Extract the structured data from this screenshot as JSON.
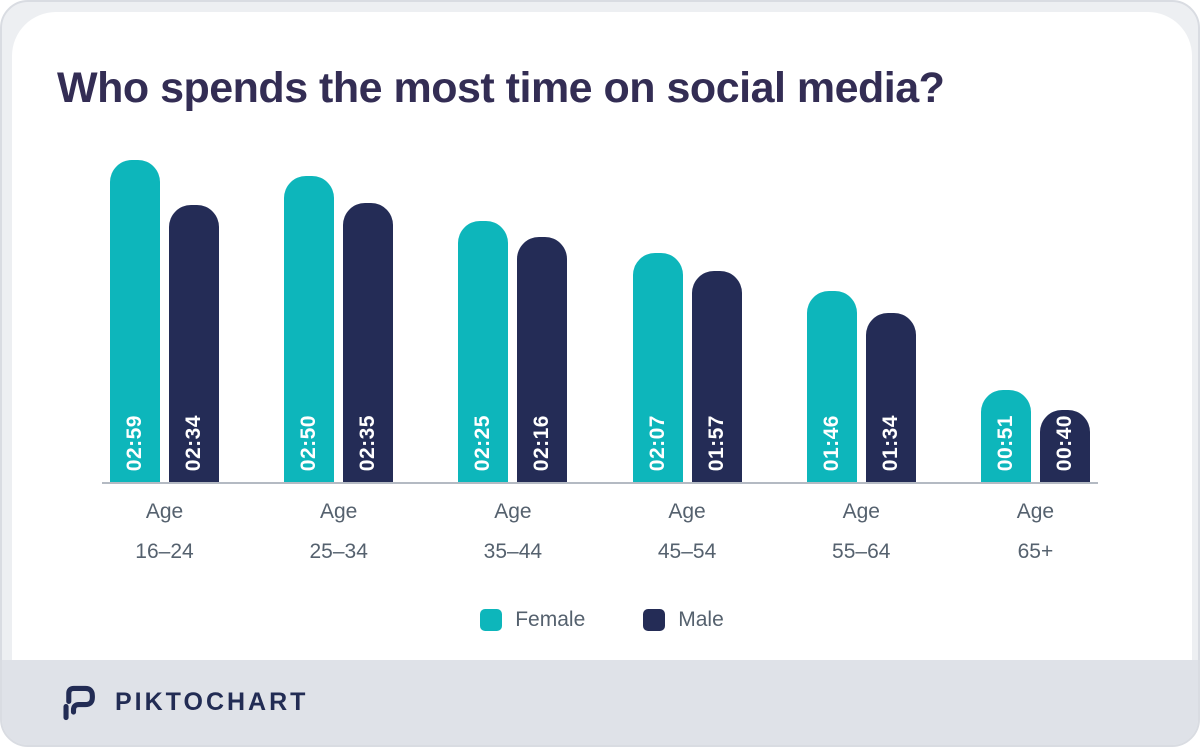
{
  "header": {
    "title": "Who spends the most time on social media?"
  },
  "chart_data": {
    "type": "bar",
    "title": "Who spends the most time on social media?",
    "category_prefix": "Age",
    "categories": [
      "16–24",
      "25–34",
      "35–44",
      "45–54",
      "55–64",
      "65+"
    ],
    "series": [
      {
        "name": "Female",
        "color": "#0db6bb",
        "values": [
          "02:59",
          "02:50",
          "02:25",
          "02:07",
          "01:46",
          "00:51"
        ],
        "values_minutes": [
          179,
          170,
          145,
          127,
          106,
          51
        ]
      },
      {
        "name": "Male",
        "color": "#242c56",
        "values": [
          "02:34",
          "02:35",
          "02:16",
          "01:57",
          "01:34",
          "00:40"
        ],
        "values_minutes": [
          154,
          155,
          136,
          117,
          94,
          40
        ]
      }
    ],
    "value_format": "hh:mm",
    "grid": false,
    "legend_position": "bottom",
    "xlabel": "",
    "ylabel": ""
  },
  "footer": {
    "brand": "PIKTOCHART"
  },
  "colors": {
    "female": "#0db6bb",
    "male": "#242c56",
    "title_text": "#332d54",
    "axis_label_text": "#55616e",
    "axis_line": "#b4bac3",
    "card_bg": "#ffffff",
    "canvas_bg": "#edeff2",
    "footer_bg": "#dfe2e8",
    "bar_value_text": "#ffffff",
    "brand_navy": "#222c54"
  }
}
